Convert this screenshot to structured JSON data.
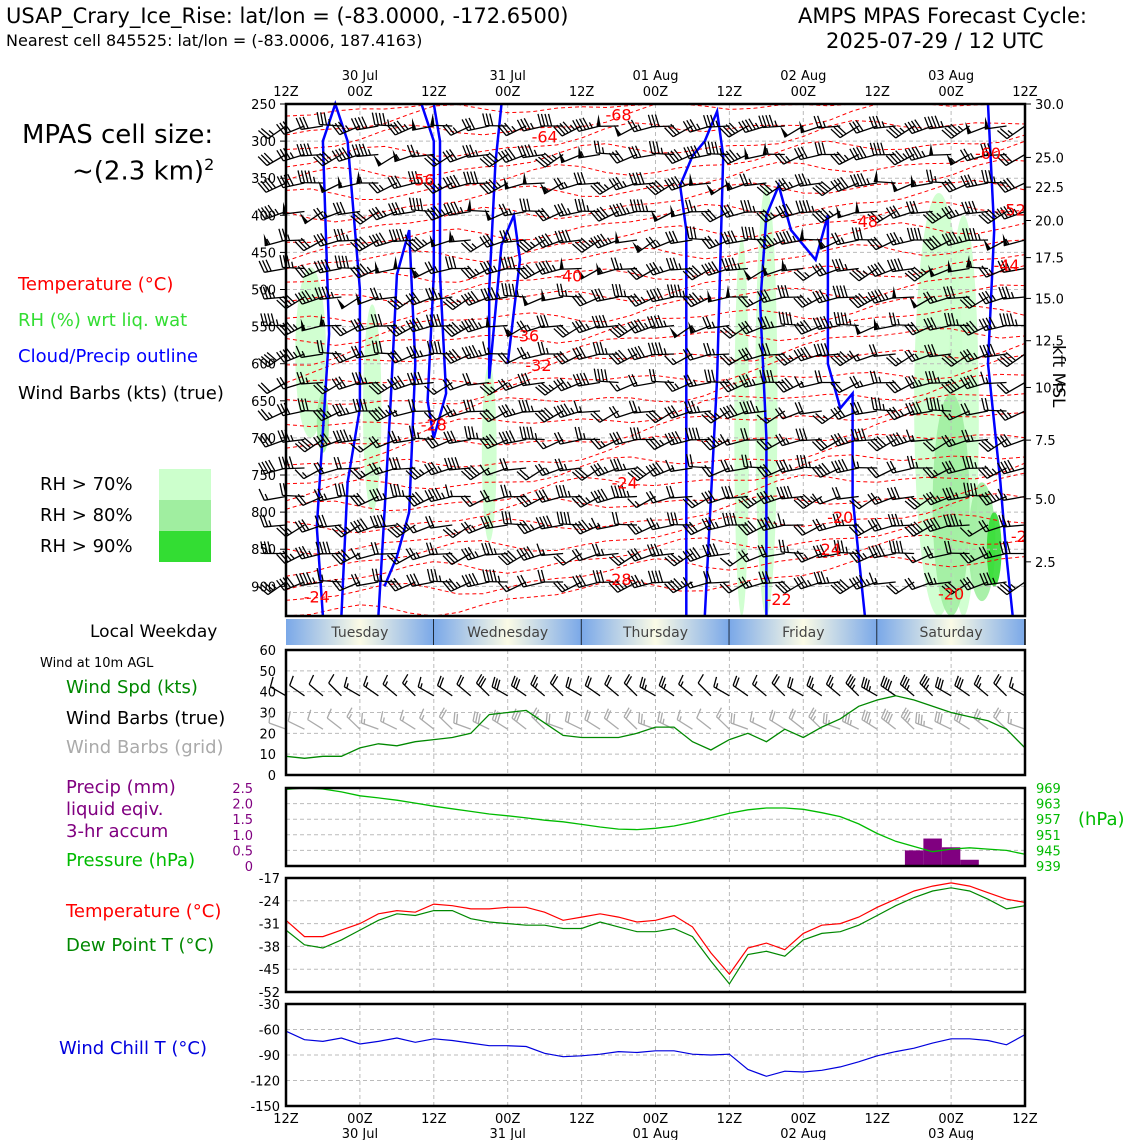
{
  "header": {
    "station_line": "USAP_Crary_Ice_Rise: lat/lon = (-83.0000, -172.6500)",
    "cell_line": "Nearest cell 845525: lat/lon = (-83.0006, 187.4163)",
    "cycle_line1": "AMPS MPAS Forecast Cycle:",
    "cycle_line2": "2025-07-29 / 12 UTC"
  },
  "side": {
    "cell_size": "MPAS cell size:",
    "cell_size_value": "~(2.3 km)",
    "cell_size_sup": "2",
    "legend_temp": "Temperature (°C)",
    "legend_rh": "RH (%) wrt liq. wat",
    "legend_cloud": "Cloud/Precip outline",
    "legend_wind": "Wind Barbs (kts) (true)",
    "rh70": "RH > 70%",
    "rh80": "RH > 80%",
    "rh90": "RH > 90%",
    "local_weekday": "Local Weekday",
    "wind10m": "Wind at 10m AGL",
    "wind_spd": "Wind Spd (kts)",
    "wind_barbs_true": "Wind Barbs (true)",
    "wind_barbs_grid": "Wind Barbs (grid)",
    "precip1": "Precip (mm)",
    "precip2": "liquid eqiv.",
    "precip3": "3-hr accum",
    "pressure": "Pressure (hPa)",
    "pressure_unit": "(hPa)",
    "temp": "Temperature (°C)",
    "dewpoint": "Dew Point T (°C)",
    "windchill": "Wind Chill T (°C)",
    "kft": "kft MSL"
  },
  "colors": {
    "temp": "#ff0000",
    "rh": "#22cc22",
    "cloud": "#0000ff",
    "wind": "#000000",
    "grid_wind": "#aaaaaa",
    "precip": "#800080",
    "pressure": "#00bb00",
    "dewpoint": "#008800",
    "windchill": "#0000dd",
    "rh70": "#ccffcc",
    "rh80": "#a0eea0",
    "rh90": "#33dd33"
  },
  "chart_data": [
    {
      "type": "heatmap",
      "x_top_ticks": [
        "12Z",
        "00Z",
        "12Z",
        "00Z",
        "12Z",
        "00Z",
        "12Z",
        "00Z",
        "12Z",
        "00Z",
        "12Z"
      ],
      "x_top_dates": [
        "30 Jul",
        "31 Jul",
        "01 Aug",
        "02 Aug",
        "03 Aug"
      ],
      "x_hours": [
        0,
        120
      ],
      "y_pressure_ticks": [
        250,
        300,
        350,
        400,
        450,
        500,
        550,
        600,
        650,
        700,
        750,
        800,
        850,
        900
      ],
      "ylim_pressure": [
        250,
        940
      ],
      "y_right_kft": [
        {
          "label": "30.0",
          "p": 250
        },
        {
          "label": "25.0",
          "p": 322
        },
        {
          "label": "22.5",
          "p": 362
        },
        {
          "label": "20.0",
          "p": 407
        },
        {
          "label": "17.5",
          "p": 457
        },
        {
          "label": "15.0",
          "p": 512
        },
        {
          "label": "12.5",
          "p": 569
        },
        {
          "label": "10.0",
          "p": 632
        },
        {
          "label": "7.5",
          "p": 703
        },
        {
          "label": "5.0",
          "p": 782
        },
        {
          "label": "2.5",
          "p": 867
        }
      ],
      "temp_labels": [
        {
          "t": "-68",
          "h": 54,
          "p": 272
        },
        {
          "t": "-64",
          "h": 42,
          "p": 302
        },
        {
          "t": "-56",
          "h": 22,
          "p": 360
        },
        {
          "t": "-60",
          "h": 114,
          "p": 324
        },
        {
          "t": "-52",
          "h": 118,
          "p": 400
        },
        {
          "t": "-48",
          "h": 94,
          "p": 416
        },
        {
          "t": "-44",
          "h": 117,
          "p": 475
        },
        {
          "t": "-40",
          "h": 46,
          "p": 489
        },
        {
          "t": "-36",
          "h": 39,
          "p": 570
        },
        {
          "t": "-32",
          "h": 41,
          "p": 610
        },
        {
          "t": "-28",
          "h": 24,
          "p": 690
        },
        {
          "t": "-24",
          "h": 55,
          "p": 768
        },
        {
          "t": "-20",
          "h": 90,
          "p": 815
        },
        {
          "t": "-24",
          "h": 88,
          "p": 858
        },
        {
          "t": "-28",
          "h": 54,
          "p": 898
        },
        {
          "t": "-24",
          "h": 5,
          "p": 922
        },
        {
          "t": "-22",
          "h": 80,
          "p": 925
        },
        {
          "t": "-20",
          "h": 108,
          "p": 918
        },
        {
          "t": "-2",
          "h": 119,
          "p": 840
        }
      ],
      "weekdays": [
        "Tuesday",
        "Wednesday",
        "Thursday",
        "Friday",
        "Saturday"
      ]
    },
    {
      "type": "line",
      "name": "wind10m",
      "ylim": [
        0,
        60
      ],
      "yticks": [
        0,
        10,
        20,
        30,
        40,
        50,
        60
      ],
      "x_hours": [
        0,
        3,
        6,
        9,
        12,
        15,
        18,
        21,
        24,
        27,
        30,
        33,
        36,
        39,
        42,
        45,
        48,
        51,
        54,
        57,
        60,
        63,
        66,
        69,
        72,
        75,
        78,
        81,
        84,
        87,
        90,
        93,
        96,
        99,
        102,
        105,
        108,
        111,
        114,
        117,
        120
      ],
      "wind_speed": [
        9,
        8,
        9,
        9,
        13,
        15,
        14,
        16,
        17,
        18,
        20,
        29,
        30,
        31,
        25,
        19,
        18,
        18,
        18,
        20,
        23,
        23,
        16,
        12,
        17,
        20,
        16,
        22,
        18,
        23,
        27,
        33,
        36,
        38,
        36,
        33,
        30,
        28,
        26,
        22,
        13
      ]
    },
    {
      "type": "line",
      "name": "pressure_precip",
      "precip_ylim": [
        0,
        2.5
      ],
      "precip_ticks": [
        "0",
        "0.5",
        "1.0",
        "1.5",
        "2.0",
        "2.5"
      ],
      "pressure_ylim": [
        939,
        969
      ],
      "pressure_ticks": [
        "939",
        "945",
        "951",
        "957",
        "963",
        "969"
      ],
      "x_hours": [
        0,
        3,
        6,
        9,
        12,
        15,
        18,
        21,
        24,
        27,
        30,
        33,
        36,
        39,
        42,
        45,
        48,
        51,
        54,
        57,
        60,
        63,
        66,
        69,
        72,
        75,
        78,
        81,
        84,
        87,
        90,
        93,
        96,
        99,
        102,
        105,
        108,
        111,
        114,
        117,
        120
      ],
      "pressure": [
        968.5,
        969,
        968.6,
        967.5,
        966,
        965.2,
        964.3,
        963.2,
        962,
        961,
        960,
        959,
        958.3,
        957.5,
        956.6,
        956,
        955,
        954,
        953.2,
        953,
        953.5,
        954.4,
        955.8,
        957.5,
        959.3,
        960.6,
        961.3,
        961.3,
        960.8,
        959.5,
        958,
        955.2,
        951.5,
        948.5,
        946.5,
        944.5,
        945.5,
        946,
        945.5,
        945,
        943.5
      ],
      "precip_bars": [
        {
          "h": 102,
          "v": 0.5
        },
        {
          "h": 105,
          "v": 0.88
        },
        {
          "h": 108,
          "v": 0.6
        },
        {
          "h": 111,
          "v": 0.2
        }
      ]
    },
    {
      "type": "line",
      "name": "temperature_dewpoint",
      "ylim": [
        -52,
        -17
      ],
      "yticks": [
        -52,
        -45,
        -38,
        -31,
        -24,
        -17
      ],
      "x_hours": [
        0,
        3,
        6,
        9,
        12,
        15,
        18,
        21,
        24,
        27,
        30,
        33,
        36,
        39,
        42,
        45,
        48,
        51,
        54,
        57,
        60,
        63,
        66,
        69,
        72,
        75,
        78,
        81,
        84,
        87,
        90,
        93,
        96,
        99,
        102,
        105,
        108,
        111,
        114,
        117,
        120
      ],
      "temperature": [
        -30,
        -35,
        -35,
        -33,
        -31,
        -28,
        -27,
        -27.5,
        -25,
        -25.5,
        -26.5,
        -26.5,
        -26,
        -26,
        -27.5,
        -30,
        -29,
        -28,
        -29,
        -30.5,
        -30,
        -28.5,
        -32,
        -40,
        -46.5,
        -38.5,
        -37,
        -39,
        -34,
        -31.5,
        -31,
        -29,
        -26,
        -23.5,
        -21,
        -19.5,
        -18.5,
        -19.5,
        -21.5,
        -23.5,
        -24.5
      ],
      "dewpoint": [
        -33,
        -37.5,
        -38.5,
        -36,
        -33,
        -30,
        -28,
        -28.5,
        -27,
        -27,
        -29.5,
        -30.5,
        -31,
        -31.5,
        -31.5,
        -32.5,
        -32.5,
        -30.5,
        -32,
        -33.5,
        -33.5,
        -32.5,
        -35,
        -42.5,
        -49.5,
        -40.5,
        -39.5,
        -41,
        -36,
        -34,
        -33.5,
        -31.5,
        -28.5,
        -25.5,
        -23,
        -21,
        -20,
        -21,
        -23.5,
        -26.5,
        -25.5
      ]
    },
    {
      "type": "line",
      "name": "wind_chill",
      "ylim": [
        -150,
        -30
      ],
      "yticks": [
        -150,
        -120,
        -90,
        -60,
        -30
      ],
      "x_hours": [
        0,
        3,
        6,
        9,
        12,
        15,
        18,
        21,
        24,
        27,
        30,
        33,
        36,
        39,
        42,
        45,
        48,
        51,
        54,
        57,
        60,
        63,
        66,
        69,
        72,
        75,
        78,
        81,
        84,
        87,
        90,
        93,
        96,
        99,
        102,
        105,
        108,
        111,
        114,
        117,
        120
      ],
      "wind_chill": [
        -62,
        -72,
        -74,
        -70,
        -77,
        -74,
        -70,
        -75,
        -71,
        -73,
        -76,
        -79,
        -79,
        -80,
        -88,
        -92,
        -91,
        -89,
        -86,
        -87,
        -85,
        -85,
        -89,
        -90,
        -89,
        -107,
        -115,
        -109,
        -110,
        -108,
        -104,
        -98,
        -91,
        -86,
        -82,
        -76,
        -71,
        -71,
        -73,
        -78,
        -66
      ],
      "x_bottom_ticks": [
        "12Z",
        "00Z",
        "12Z",
        "00Z",
        "12Z",
        "00Z",
        "12Z",
        "00Z",
        "12Z",
        "00Z",
        "12Z"
      ],
      "x_bottom_dates": [
        "30 Jul",
        "31 Jul",
        "01 Aug",
        "02 Aug",
        "03 Aug"
      ]
    }
  ]
}
